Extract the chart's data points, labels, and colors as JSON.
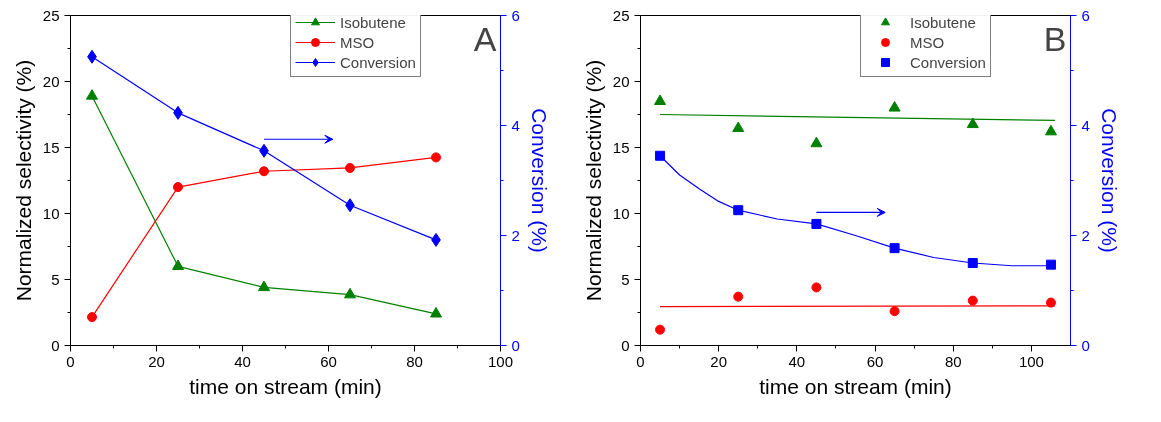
{
  "chart_data": [
    {
      "type": "line",
      "annotations": [
        "A"
      ],
      "xlabel": "time on stream (min)",
      "ylabel": "Normalized selectivity (%)",
      "y2label": "Conversion (%)",
      "x": [
        5,
        25,
        45,
        65,
        85
      ],
      "xlim": [
        0,
        100
      ],
      "xticks": [
        0,
        20,
        40,
        60,
        80,
        100
      ],
      "ylim": [
        0,
        25
      ],
      "yticks": [
        0,
        5,
        10,
        15,
        20,
        25
      ],
      "y2lim": [
        0,
        6
      ],
      "y2ticks": [
        0,
        2,
        4,
        6
      ],
      "grid": false,
      "legend": "top right",
      "series": [
        {
          "name": "Isobutene",
          "color": "#008000",
          "marker": "triangle",
          "values": [
            18.9,
            6.0,
            4.4,
            3.85,
            2.4
          ]
        },
        {
          "name": "MSO",
          "color": "#ff0000",
          "marker": "circle",
          "values": [
            2.15,
            12.0,
            13.2,
            13.45,
            14.25
          ]
        },
        {
          "name": "Conversion",
          "color": "#0000ff",
          "marker": "diamond",
          "axis": "y2",
          "values": [
            5.25,
            4.23,
            3.54,
            2.55,
            1.92
          ]
        }
      ]
    },
    {
      "type": "scatter",
      "annotations": [
        "B"
      ],
      "xlabel": "time on stream (min)",
      "ylabel": "Normalized selectivity (%)",
      "y2label": "Conversion (%)",
      "x": [
        5,
        25,
        45,
        65,
        85,
        105
      ],
      "xlim": [
        0,
        110
      ],
      "xticks": [
        0,
        20,
        40,
        60,
        80,
        100
      ],
      "ylim": [
        0,
        25
      ],
      "yticks": [
        0,
        5,
        10,
        15,
        20,
        25
      ],
      "y2lim": [
        0,
        6
      ],
      "y2ticks": [
        0,
        2,
        4,
        6
      ],
      "grid": false,
      "legend": "top right",
      "series": [
        {
          "name": "Isobutene",
          "color": "#008000",
          "marker": "triangle",
          "values": [
            18.5,
            16.45,
            15.3,
            18.0,
            16.75,
            16.2
          ]
        },
        {
          "name": "MSO",
          "color": "#ff0000",
          "marker": "circle",
          "values": [
            1.2,
            3.7,
            4.4,
            2.6,
            3.4,
            3.25
          ]
        },
        {
          "name": "Conversion",
          "color": "#0000ff",
          "marker": "square",
          "axis": "y2",
          "values": [
            3.45,
            2.46,
            2.21,
            1.77,
            1.5,
            1.47
          ]
        },
        {
          "type": "line",
          "color": "#008000",
          "x": [
            5,
            106
          ],
          "values": [
            17.5,
            17.05
          ]
        },
        {
          "type": "line",
          "color": "#ff0000",
          "x": [
            5,
            106
          ],
          "values": [
            2.95,
            3.0
          ]
        },
        {
          "type": "line",
          "color": "#0000ff",
          "axis": "y2",
          "x": [
            5,
            10,
            15,
            20,
            25,
            35,
            45,
            55,
            65,
            75,
            85,
            95,
            106
          ],
          "values": [
            3.45,
            3.1,
            2.85,
            2.62,
            2.46,
            2.3,
            2.21,
            2.0,
            1.77,
            1.6,
            1.5,
            1.45,
            1.45
          ]
        }
      ]
    }
  ]
}
